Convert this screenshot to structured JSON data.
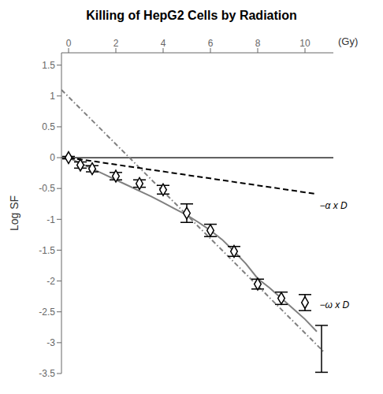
{
  "chart_data": {
    "type": "line",
    "title": "Killing of HepG2 Cells by Radiation",
    "xlabel": "(Gy)",
    "ylabel": "Log SF",
    "xlim": [
      -0.3,
      11.2
    ],
    "xticks": [
      0,
      2,
      4,
      6,
      8,
      10
    ],
    "ylim": [
      -3.5,
      1.7
    ],
    "yticks": [
      -3.5,
      -3,
      -2.5,
      -2,
      -1.5,
      -1,
      -0.5,
      0,
      0.5,
      1,
      1.5
    ],
    "series": [
      {
        "type": "hline",
        "values": [
          0
        ],
        "color": "black",
        "line_style": "solid"
      },
      {
        "type": "line",
        "x": [
          -0.3,
          10.8
        ],
        "values": [
          1.1,
          -3.15
        ],
        "color": "gray",
        "line_style": "dashdot"
      },
      {
        "type": "line",
        "x": [
          0,
          10.5
        ],
        "values": [
          0,
          -0.59
        ],
        "color": "black",
        "line_style": "dashed"
      },
      {
        "type": "line",
        "x": [
          0,
          0.5,
          1.0,
          1.5,
          2.0,
          2.5,
          3.0,
          3.5,
          4.0,
          4.5,
          5.0,
          5.5,
          6.0,
          6.5,
          7.0,
          7.5,
          8.0,
          8.5,
          9.0,
          9.5,
          10.0,
          10.5
        ],
        "values": [
          0,
          -0.09,
          -0.18,
          -0.27,
          -0.36,
          -0.45,
          -0.54,
          -0.63,
          -0.73,
          -0.83,
          -0.93,
          -1.05,
          -1.18,
          -1.33,
          -1.52,
          -1.72,
          -1.96,
          -2.11,
          -2.28,
          -2.45,
          -2.62,
          -2.82
        ],
        "color": "gray",
        "line_style": "solid"
      },
      {
        "type": "scatter",
        "x": [
          0,
          0.5,
          1.0,
          2.0,
          3.0,
          4.0,
          5.0,
          6.0,
          7.0,
          8.0,
          9.0,
          10.0
        ],
        "values": [
          0,
          -0.12,
          -0.18,
          -0.3,
          -0.42,
          -0.52,
          -0.9,
          -1.18,
          -1.52,
          -2.05,
          -2.28,
          -2.35
        ],
        "errors": [
          0.02,
          0.05,
          0.05,
          0.06,
          0.06,
          0.07,
          0.15,
          0.1,
          0.08,
          0.08,
          0.1,
          0.13
        ],
        "color": "black",
        "marker": "diamond"
      },
      {
        "type": "scatter",
        "x": [
          10.7
        ],
        "values": [
          -3.1
        ],
        "errors": [
          0.38
        ],
        "color": "black",
        "marker": "none"
      }
    ],
    "annotations": [
      {
        "text": "−α x D",
        "x": 10.55,
        "y": -0.78
      },
      {
        "text": "−ω x D",
        "x": 10.55,
        "y": -2.38
      }
    ],
    "grid": false
  }
}
